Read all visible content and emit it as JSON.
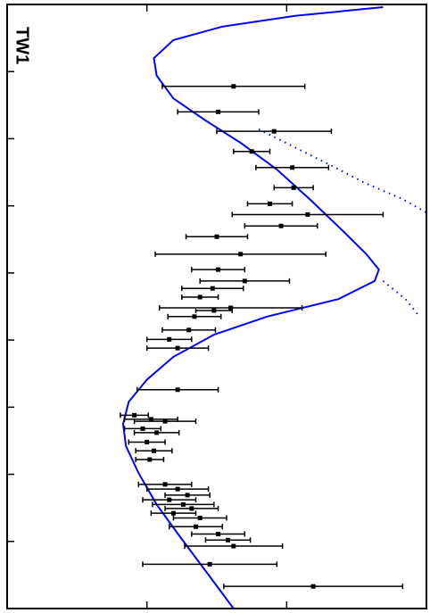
{
  "chart_data": {
    "type": "scatter",
    "title": "TW1",
    "xlim": [
      0,
      9
    ],
    "ylim": [
      0,
      3
    ],
    "xticks": [
      1,
      2,
      3,
      4,
      5,
      6,
      7,
      8
    ],
    "yticks": [
      1,
      2
    ],
    "series": [
      {
        "type": "line",
        "color": "#0000ff",
        "x": [
          0.04,
          0.17,
          0.33,
          0.53,
          0.8,
          1.06,
          1.4,
          1.73,
          2.06,
          2.46,
          2.93,
          3.39,
          3.72,
          3.95,
          4.12,
          4.39,
          4.65,
          4.92,
          5.25,
          5.59,
          5.92,
          6.25,
          6.58,
          6.98,
          7.45,
          7.91,
          8.44,
          9.0
        ],
        "values": [
          2.69,
          2.06,
          1.54,
          1.19,
          1.05,
          1.07,
          1.19,
          1.42,
          1.67,
          1.93,
          2.18,
          2.41,
          2.57,
          2.66,
          2.63,
          2.37,
          1.86,
          1.48,
          1.19,
          1.0,
          0.87,
          0.83,
          0.85,
          0.94,
          1.07,
          1.23,
          1.42,
          1.62
        ]
      },
      {
        "type": "line",
        "color": "#0000ff",
        "dotted": true,
        "x": [
          1.86,
          2.13,
          2.39,
          2.66,
          2.89,
          3.1,
          null,
          4.12,
          4.39,
          4.65
        ],
        "values": [
          1.8,
          2.06,
          2.31,
          2.56,
          2.82,
          3.0,
          null,
          2.69,
          2.85,
          2.95
        ]
      },
      {
        "type": "errorbar",
        "color": "#000000",
        "x": [
          1.22,
          1.6,
          1.89,
          2.19,
          2.43,
          2.73,
          2.97,
          3.13,
          3.3,
          3.46,
          3.72,
          3.95,
          4.12,
          4.23,
          4.36,
          4.52,
          4.56,
          4.65,
          4.85,
          4.99,
          5.12,
          5.74,
          6.12,
          6.18,
          6.21,
          6.32,
          6.38,
          6.52,
          6.65,
          6.78,
          7.15,
          7.22,
          7.31,
          7.38,
          7.45,
          7.51,
          7.58,
          7.65,
          7.78,
          7.89,
          7.98,
          8.07,
          8.34,
          8.67
        ],
        "values": [
          1.62,
          1.51,
          1.91,
          1.75,
          2.04,
          2.05,
          1.88,
          2.15,
          1.96,
          1.5,
          1.67,
          1.51,
          1.7,
          1.47,
          1.38,
          1.6,
          1.48,
          1.34,
          1.3,
          1.16,
          1.22,
          1.22,
          0.91,
          1.03,
          1.13,
          0.97,
          1.07,
          1.0,
          1.05,
          1.02,
          1.13,
          1.22,
          1.29,
          1.16,
          1.26,
          1.32,
          1.19,
          1.38,
          1.35,
          1.51,
          1.58,
          1.62,
          1.45,
          2.19
        ],
        "errors": [
          0.51,
          0.29,
          0.41,
          0.13,
          0.26,
          0.14,
          0.16,
          0.54,
          0.26,
          0.22,
          0.61,
          0.19,
          0.32,
          0.22,
          0.13,
          0.51,
          0.13,
          0.19,
          0.19,
          0.16,
          0.22,
          0.29,
          0.1,
          0.19,
          0.22,
          0.13,
          0.16,
          0.13,
          0.13,
          0.1,
          0.19,
          0.22,
          0.16,
          0.19,
          0.22,
          0.19,
          0.16,
          0.19,
          0.19,
          0.19,
          0.16,
          0.35,
          0.48,
          0.64
        ]
      }
    ]
  }
}
